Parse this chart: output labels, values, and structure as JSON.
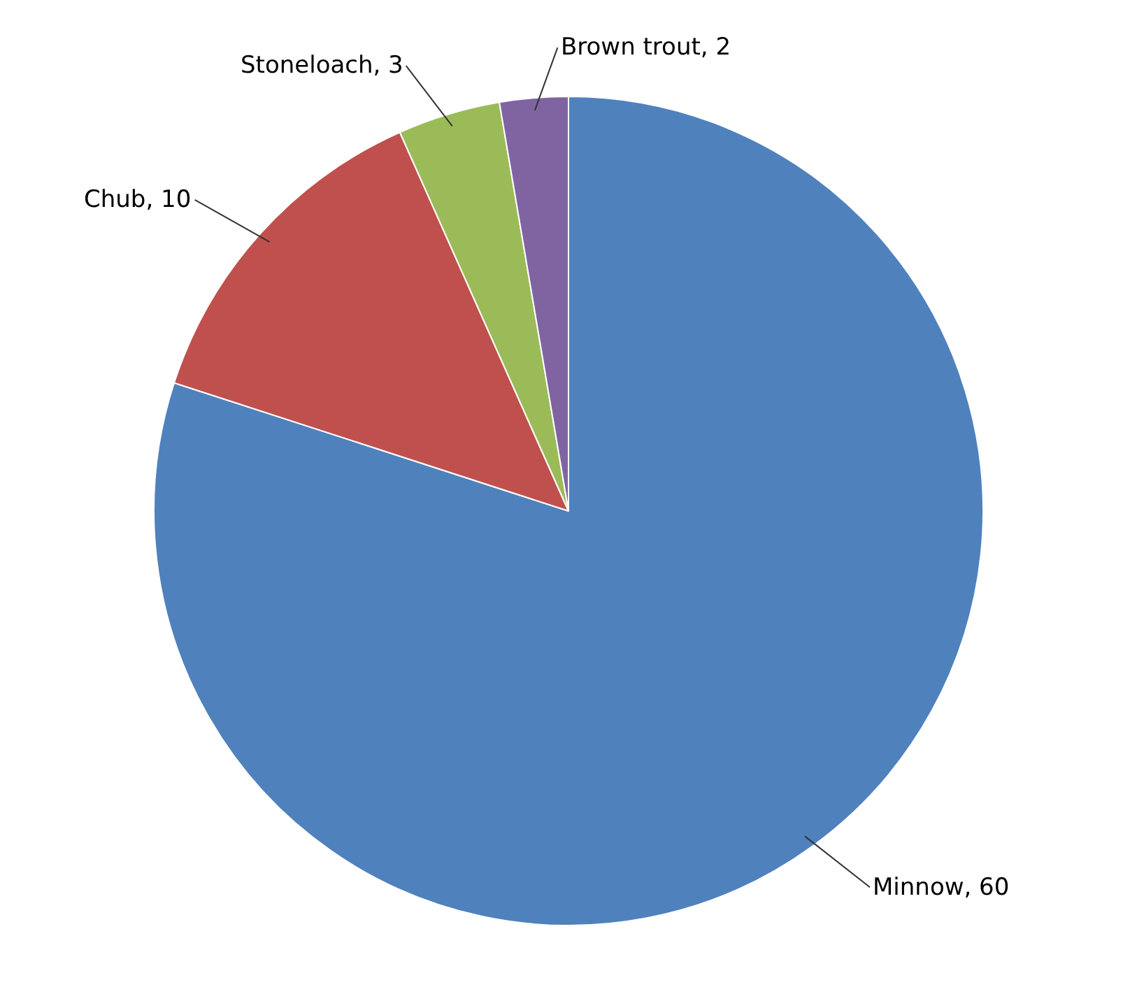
{
  "chart_data": {
    "type": "pie",
    "categories": [
      "Minnow",
      "Chub",
      "Stoneloach",
      "Brown trout"
    ],
    "values": [
      60,
      10,
      3,
      2
    ],
    "colors": [
      "#4f81bd",
      "#c0504d",
      "#9bbb59",
      "#8064a2"
    ],
    "value_labels": [
      ", 60",
      ", 10",
      ", 3",
      ", 2"
    ],
    "legend": false
  }
}
